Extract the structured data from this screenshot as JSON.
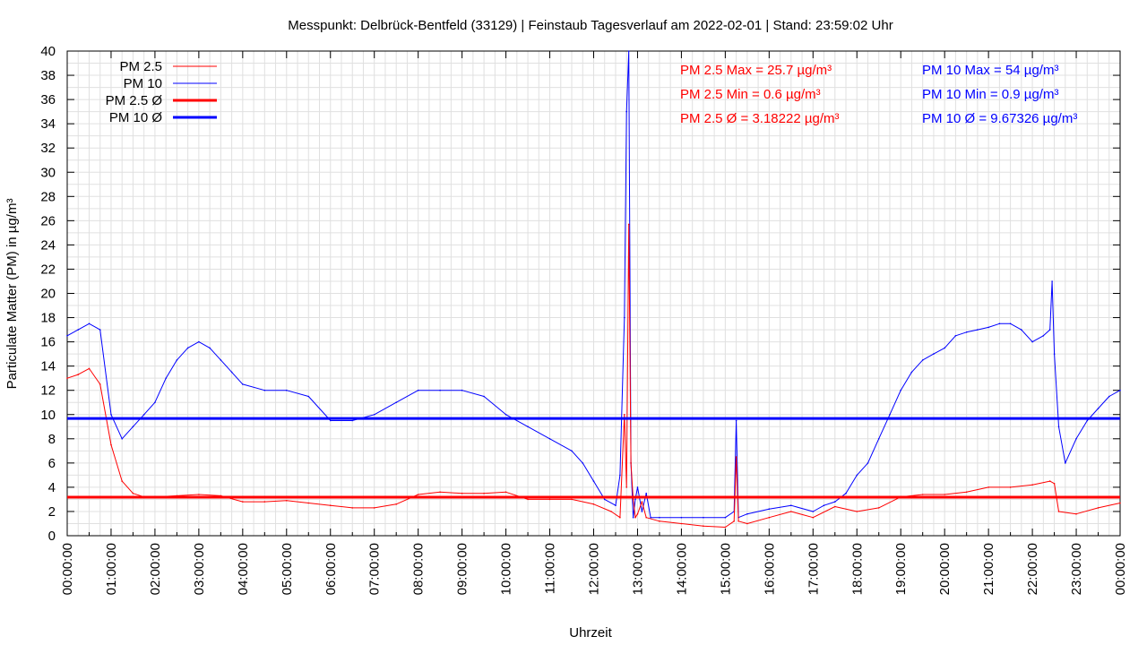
{
  "chart_data": {
    "type": "line",
    "title": "Messpunkt: Delbrück-Bentfeld (33129) | Feinstaub Tagesverlauf am 2022-02-01 | Stand: 23:59:02 Uhr",
    "xlabel": "Uhrzeit",
    "ylabel": "Particulate Matter (PM) in µg/m³",
    "ylim": [
      0,
      40
    ],
    "xlim": [
      "00:00:00",
      "24:00:00"
    ],
    "grid": true,
    "legend_position": "top-left",
    "y_ticks": [
      "0",
      "2",
      "4",
      "6",
      "8",
      "10",
      "12",
      "14",
      "16",
      "18",
      "20",
      "22",
      "24",
      "26",
      "28",
      "30",
      "32",
      "34",
      "36",
      "38",
      "40"
    ],
    "x_ticks": [
      "00:00:00",
      "01:00:00",
      "02:00:00",
      "03:00:00",
      "04:00:00",
      "05:00:00",
      "06:00:00",
      "07:00:00",
      "08:00:00",
      "09:00:00",
      "10:00:00",
      "11:00:00",
      "12:00:00",
      "13:00:00",
      "14:00:00",
      "15:00:00",
      "16:00:00",
      "17:00:00",
      "18:00:00",
      "19:00:00",
      "20:00:00",
      "21:00:00",
      "22:00:00",
      "23:00:00",
      "00:00:00"
    ],
    "colors": {
      "pm25": "#ff0000",
      "pm10": "#0000ff",
      "grid": "#e0e0e0"
    },
    "legend": [
      {
        "label": "PM 2.5",
        "series": "pm25",
        "style": "thin"
      },
      {
        "label": "PM 10",
        "series": "pm10",
        "style": "thin"
      },
      {
        "label": "PM 2.5 Ø",
        "series": "pm25",
        "style": "thick"
      },
      {
        "label": "PM 10 Ø",
        "series": "pm10",
        "style": "thick"
      }
    ],
    "stats": {
      "pm25": [
        "PM 2.5 Max = 25.7 µg/m³",
        "PM 2.5 Min = 0.6 µg/m³",
        "PM 2.5 Ø = 3.18222 µg/m³"
      ],
      "pm10": [
        "PM 10 Max = 54 µg/m³",
        "PM 10 Min = 0.9 µg/m³",
        "PM 10 Ø = 9.67326 µg/m³"
      ]
    },
    "averages": {
      "pm25": 3.18222,
      "pm10": 9.67326
    },
    "series": [
      {
        "name": "PM 2.5",
        "key": "pm25",
        "x": [
          0,
          0.25,
          0.5,
          0.75,
          1,
          1.25,
          1.5,
          1.75,
          2,
          2.5,
          3,
          3.5,
          4,
          4.5,
          5,
          5.5,
          6,
          6.5,
          7,
          7.5,
          8,
          8.5,
          9,
          9.5,
          10,
          10.5,
          11,
          11.5,
          12,
          12.4,
          12.6,
          12.7,
          12.75,
          12.8,
          12.85,
          12.9,
          12.95,
          13,
          13.1,
          13.2,
          13.5,
          14,
          14.5,
          15,
          15.2,
          15.25,
          15.3,
          15.5,
          16,
          16.5,
          17,
          17.5,
          18,
          18.5,
          19,
          19.5,
          20,
          20.5,
          21,
          21.5,
          22,
          22.4,
          22.5,
          22.6,
          23,
          23.5,
          24
        ],
        "values": [
          13,
          13.3,
          13.8,
          12.5,
          7.5,
          4.5,
          3.5,
          3.2,
          3.2,
          3.3,
          3.4,
          3.3,
          2.8,
          2.8,
          2.9,
          2.7,
          2.5,
          2.3,
          2.3,
          2.6,
          3.4,
          3.6,
          3.5,
          3.5,
          3.6,
          3,
          3,
          3,
          2.6,
          2,
          1.5,
          10,
          4,
          25.7,
          6,
          3,
          1.5,
          1.8,
          2.8,
          1.5,
          1.2,
          1,
          0.8,
          0.7,
          1.2,
          6.5,
          1.2,
          1,
          1.5,
          2,
          1.5,
          2.4,
          2,
          2.3,
          3.2,
          3.4,
          3.4,
          3.6,
          4,
          4,
          4.2,
          4.5,
          4.3,
          2,
          1.8,
          2.3,
          2.7
        ]
      },
      {
        "name": "PM 10",
        "key": "pm10",
        "x": [
          0,
          0.25,
          0.5,
          0.75,
          1,
          1.25,
          1.5,
          1.75,
          2,
          2.25,
          2.5,
          2.75,
          3,
          3.25,
          3.5,
          3.75,
          4,
          4.5,
          5,
          5.5,
          6,
          6.5,
          7,
          7.5,
          8,
          8.5,
          9,
          9.5,
          10,
          10.5,
          11,
          11.5,
          11.75,
          12,
          12.25,
          12.5,
          12.6,
          12.7,
          12.75,
          12.8,
          12.85,
          12.9,
          12.95,
          13,
          13.1,
          13.2,
          13.3,
          13.5,
          14,
          14.5,
          15,
          15.2,
          15.25,
          15.3,
          15.5,
          16,
          16.5,
          17,
          17.25,
          17.5,
          17.75,
          18,
          18.25,
          18.5,
          18.75,
          19,
          19.25,
          19.5,
          19.75,
          20,
          20.25,
          20.5,
          20.75,
          21,
          21.25,
          21.5,
          21.75,
          22,
          22.25,
          22.4,
          22.45,
          22.5,
          22.6,
          22.75,
          23,
          23.25,
          23.5,
          23.75,
          24
        ],
        "values": [
          16.5,
          17,
          17.5,
          17,
          10,
          8,
          9,
          10,
          11,
          13,
          14.5,
          15.5,
          16,
          15.5,
          14.5,
          13.5,
          12.5,
          12,
          12,
          11.5,
          9.5,
          9.5,
          10,
          11,
          12,
          12,
          12,
          11.5,
          10,
          9,
          8,
          7,
          6,
          4.5,
          3,
          2.5,
          5,
          18,
          35,
          54,
          6,
          1.5,
          3,
          4,
          2,
          3.5,
          1.5,
          1.5,
          1.5,
          1.5,
          1.5,
          2,
          9.5,
          1.5,
          1.8,
          2.2,
          2.5,
          2,
          2.5,
          2.8,
          3.5,
          5,
          6,
          8,
          10,
          12,
          13.5,
          14.5,
          15,
          15.5,
          16.5,
          16.8,
          17,
          17.2,
          17.5,
          17.5,
          17,
          16,
          16.5,
          17,
          21,
          15,
          9,
          6,
          8,
          9.5,
          10.5,
          11.5,
          12
        ]
      }
    ]
  }
}
